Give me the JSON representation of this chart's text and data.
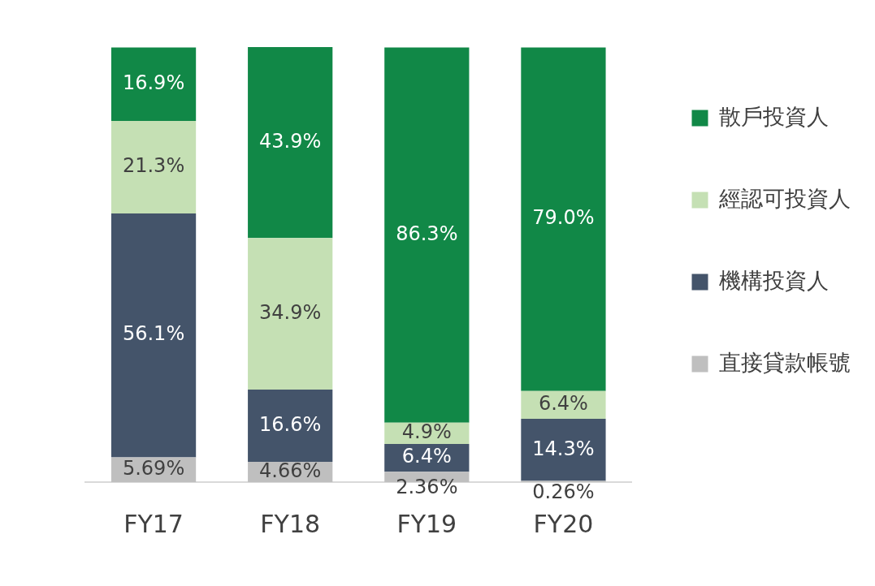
{
  "chart_data": {
    "type": "bar",
    "stacked": true,
    "legend": "right",
    "grid": false,
    "categories": [
      "FY17",
      "FY18",
      "FY19",
      "FY20"
    ],
    "series": [
      {
        "name": "直接貸款帳號",
        "color": "#bfbfbf",
        "values": [
          5.69,
          4.66,
          2.36,
          0.26
        ],
        "value_labels": [
          "5.69%",
          "4.66%",
          "2.36%",
          "0.26%"
        ]
      },
      {
        "name": "機構投資人",
        "color": "#44546a",
        "values": [
          56.1,
          16.6,
          6.4,
          14.3
        ],
        "value_labels": [
          "56.1%",
          "16.6%",
          "6.4%",
          "14.3%"
        ]
      },
      {
        "name": "經認可投資人",
        "color": "#c5e0b4",
        "values": [
          21.3,
          34.9,
          4.9,
          6.4
        ],
        "value_labels": [
          "21.3%",
          "34.9%",
          "4.9%",
          "6.4%"
        ]
      },
      {
        "name": "散戶投資人",
        "color": "#118847",
        "values": [
          16.9,
          43.9,
          86.3,
          79.0
        ],
        "value_labels": [
          "16.9%",
          "43.9%",
          "86.3%",
          "79.0%"
        ]
      }
    ]
  }
}
